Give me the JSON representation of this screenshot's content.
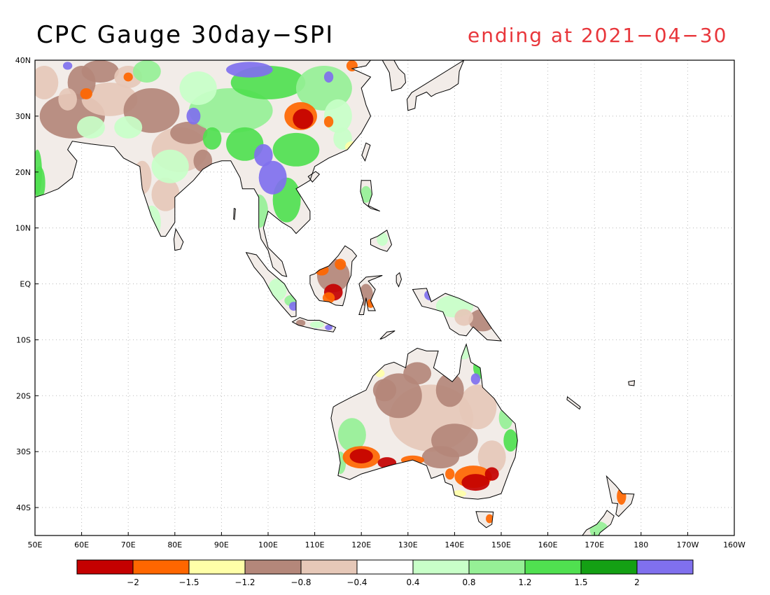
{
  "title": "CPC Gauge 30day−SPI",
  "subtitle": "ending at 2021−04−30",
  "map": {
    "region": "Asia-Pacific / Australia",
    "lon_range": [
      50,
      200
    ],
    "lat_range": [
      -45,
      40
    ],
    "lat_ticks": [
      {
        "lat": 40,
        "label": "40N"
      },
      {
        "lat": 30,
        "label": "30N"
      },
      {
        "lat": 20,
        "label": "20N"
      },
      {
        "lat": 10,
        "label": "10N"
      },
      {
        "lat": 0,
        "label": "EQ"
      },
      {
        "lat": -10,
        "label": "10S"
      },
      {
        "lat": -20,
        "label": "20S"
      },
      {
        "lat": -30,
        "label": "30S"
      },
      {
        "lat": -40,
        "label": "40S"
      }
    ],
    "lon_ticks": [
      {
        "lon": 50,
        "label": "50E"
      },
      {
        "lon": 60,
        "label": "60E"
      },
      {
        "lon": 70,
        "label": "70E"
      },
      {
        "lon": 80,
        "label": "80E"
      },
      {
        "lon": 90,
        "label": "90E"
      },
      {
        "lon": 100,
        "label": "100E"
      },
      {
        "lon": 110,
        "label": "110E"
      },
      {
        "lon": 120,
        "label": "120E"
      },
      {
        "lon": 130,
        "label": "130E"
      },
      {
        "lon": 140,
        "label": "140E"
      },
      {
        "lon": 150,
        "label": "150E"
      },
      {
        "lon": 160,
        "label": "160E"
      },
      {
        "lon": 170,
        "label": "170E"
      },
      {
        "lon": 180,
        "label": "180"
      },
      {
        "lon": 190,
        "label": "170W"
      },
      {
        "lon": 200,
        "label": "160W"
      }
    ],
    "grid": true,
    "spi_regions": [
      {
        "name": "se-china-drought",
        "lon": [
          104,
          111
        ],
        "lat": [
          27,
          32
        ],
        "class": 0
      },
      {
        "name": "tibet-wet",
        "lon": [
          90,
          101
        ],
        "lat": [
          34,
          39
        ],
        "class": 10
      },
      {
        "name": "indochina-wet",
        "lon": [
          98,
          107
        ],
        "lat": [
          14,
          22
        ],
        "class": 10
      },
      {
        "name": "sw-australia-drought",
        "lon": [
          115,
          127
        ],
        "lat": [
          -33,
          -28
        ],
        "class": 0
      },
      {
        "name": "se-australia-drought",
        "lon": [
          140,
          149
        ],
        "lat": [
          -38,
          -33
        ],
        "class": 0
      },
      {
        "name": "borneo-dry",
        "lon": [
          109,
          118
        ],
        "lat": [
          -3,
          5
        ],
        "class": 1
      },
      {
        "name": "india-mixed",
        "lon": [
          68,
          88
        ],
        "lat": [
          8,
          30
        ],
        "class": 3
      },
      {
        "name": "north-australia-wet",
        "lon": [
          136,
          146
        ],
        "lat": [
          -22,
          -12
        ],
        "class": 8
      }
    ]
  },
  "colorbar": {
    "colors": [
      "#c40000",
      "#ff6600",
      "#ffffa8",
      "#b4877a",
      "#e6c8b8",
      "#ffffff",
      "#c8ffc8",
      "#96f096",
      "#50e050",
      "#14a014",
      "#8070ee"
    ],
    "labels": [
      "−2",
      "−1.5",
      "−1.2",
      "−0.8",
      "−0.4",
      "0.4",
      "0.8",
      "1.2",
      "1.5",
      "2"
    ]
  }
}
